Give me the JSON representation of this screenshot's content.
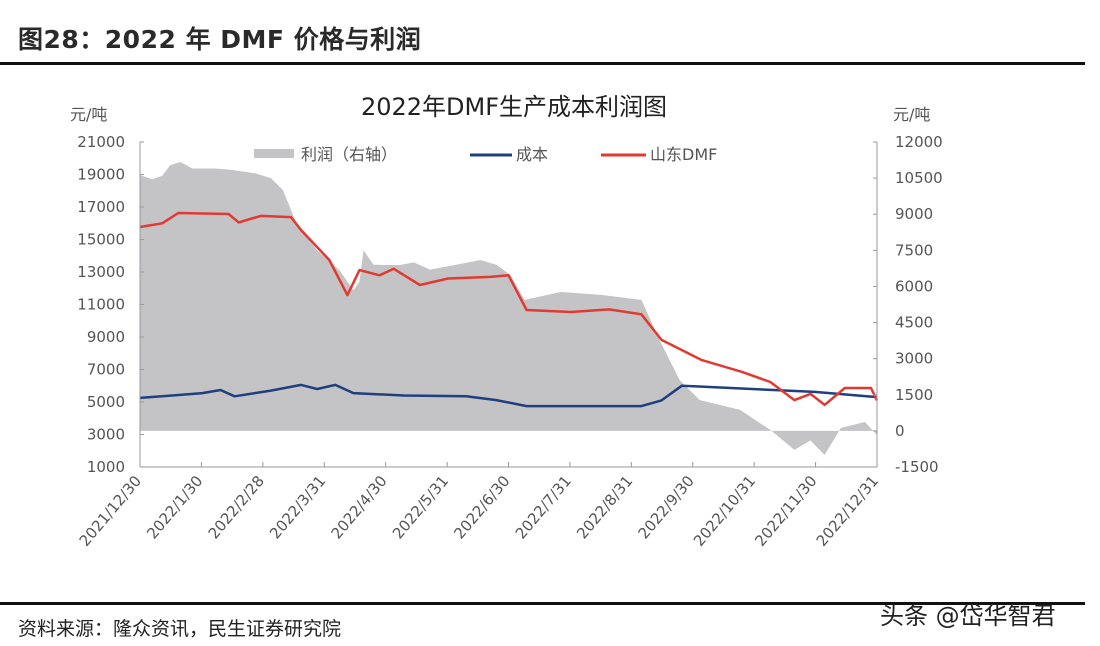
{
  "figure": {
    "title": "图28：2022 年 DMF 价格与利润",
    "source": "资料来源：隆众资讯，民生证券研究院",
    "watermark": "头条 @岱华智君"
  },
  "chart_data": {
    "type": "line+area",
    "title": "2022年DMF生产成本利润图",
    "ylabel_left": "元/吨",
    "ylabel_right": "元/吨",
    "ylim_left": [
      1000,
      21000
    ],
    "ylim_right": [
      -1500,
      12000
    ],
    "yticks_left": [
      "21000",
      "19000",
      "17000",
      "15000",
      "13000",
      "11000",
      "9000",
      "7000",
      "5000",
      "3000",
      "1000"
    ],
    "yticks_right": [
      "12000",
      "10500",
      "9000",
      "7500",
      "6000",
      "4500",
      "3000",
      "1500",
      "0",
      "-1500"
    ],
    "xlim": [
      "2021-12-30",
      "2022-12-31"
    ],
    "xticks": [
      "2021/12/30",
      "2022/1/30",
      "2022/2/28",
      "2022/3/31",
      "2022/4/30",
      "2022/5/31",
      "2022/6/30",
      "2022/7/31",
      "2022/8/31",
      "2022/9/30",
      "2022/10/31",
      "2022/11/30",
      "2022/12/31"
    ],
    "grid": false,
    "legend_position": "top",
    "colors": {
      "profit": "#c4c4c6",
      "cost": "#1f3f7f",
      "price": "#e03a32"
    },
    "series": [
      {
        "name": "利润（右轴）",
        "axis": "right",
        "kind": "area",
        "points": [
          [
            "2021-12-30",
            10630
          ],
          [
            "2022-01-05",
            10450
          ],
          [
            "2022-01-10",
            10600
          ],
          [
            "2022-01-14",
            11040
          ],
          [
            "2022-01-19",
            11170
          ],
          [
            "2022-01-25",
            10900
          ],
          [
            "2022-02-05",
            10900
          ],
          [
            "2022-02-13",
            10850
          ],
          [
            "2022-02-25",
            10700
          ],
          [
            "2022-03-05",
            10500
          ],
          [
            "2022-03-11",
            10000
          ],
          [
            "2022-03-18",
            8550
          ],
          [
            "2022-03-28",
            7500
          ],
          [
            "2022-04-08",
            6680
          ],
          [
            "2022-04-15",
            5850
          ],
          [
            "2022-04-18",
            6200
          ],
          [
            "2022-04-20",
            7500
          ],
          [
            "2022-04-25",
            6900
          ],
          [
            "2022-05-08",
            6890
          ],
          [
            "2022-05-15",
            7000
          ],
          [
            "2022-05-23",
            6700
          ],
          [
            "2022-06-05",
            6900
          ],
          [
            "2022-06-17",
            7100
          ],
          [
            "2022-06-25",
            6900
          ],
          [
            "2022-07-02",
            6470
          ],
          [
            "2022-07-09",
            5440
          ],
          [
            "2022-07-27",
            5770
          ],
          [
            "2022-08-16",
            5650
          ],
          [
            "2022-09-05",
            5440
          ],
          [
            "2022-09-14",
            3775
          ],
          [
            "2022-09-24",
            2110
          ],
          [
            "2022-10-04",
            1280
          ],
          [
            "2022-10-24",
            870
          ],
          [
            "2022-11-08",
            40
          ],
          [
            "2022-11-20",
            -790
          ],
          [
            "2022-11-28",
            -400
          ],
          [
            "2022-12-05",
            -1000
          ],
          [
            "2022-12-13",
            120
          ],
          [
            "2022-12-25",
            370
          ],
          [
            "2022-12-31",
            -170
          ]
        ]
      },
      {
        "name": "成本",
        "axis": "left",
        "kind": "line",
        "points": [
          [
            "2021-12-30",
            5250
          ],
          [
            "2022-01-15",
            5400
          ],
          [
            "2022-01-30",
            5550
          ],
          [
            "2022-02-08",
            5740
          ],
          [
            "2022-02-15",
            5350
          ],
          [
            "2022-03-05",
            5700
          ],
          [
            "2022-03-20",
            6050
          ],
          [
            "2022-03-28",
            5800
          ],
          [
            "2022-04-06",
            6050
          ],
          [
            "2022-04-15",
            5550
          ],
          [
            "2022-05-10",
            5400
          ],
          [
            "2022-06-10",
            5350
          ],
          [
            "2022-06-25",
            5120
          ],
          [
            "2022-07-10",
            4750
          ],
          [
            "2022-08-10",
            4750
          ],
          [
            "2022-09-05",
            4750
          ],
          [
            "2022-09-15",
            5100
          ],
          [
            "2022-09-25",
            6000
          ],
          [
            "2022-10-05",
            5950
          ],
          [
            "2022-10-30",
            5800
          ],
          [
            "2022-11-30",
            5620
          ],
          [
            "2022-12-31",
            5300
          ]
        ]
      },
      {
        "name": "山东DMF",
        "axis": "left",
        "kind": "line",
        "points": [
          [
            "2021-12-30",
            15770
          ],
          [
            "2022-01-10",
            16000
          ],
          [
            "2022-01-18",
            16630
          ],
          [
            "2022-02-12",
            16570
          ],
          [
            "2022-02-17",
            16050
          ],
          [
            "2022-02-28",
            16450
          ],
          [
            "2022-03-15",
            16380
          ],
          [
            "2022-03-20",
            15580
          ],
          [
            "2022-04-03",
            13740
          ],
          [
            "2022-04-12",
            11580
          ],
          [
            "2022-04-18",
            13120
          ],
          [
            "2022-04-28",
            12800
          ],
          [
            "2022-05-05",
            13200
          ],
          [
            "2022-05-18",
            12200
          ],
          [
            "2022-06-01",
            12600
          ],
          [
            "2022-06-22",
            12700
          ],
          [
            "2022-07-01",
            12800
          ],
          [
            "2022-07-10",
            10660
          ],
          [
            "2022-08-01",
            10540
          ],
          [
            "2022-08-20",
            10700
          ],
          [
            "2022-09-05",
            10400
          ],
          [
            "2022-09-15",
            8820
          ],
          [
            "2022-09-25",
            8200
          ],
          [
            "2022-10-05",
            7580
          ],
          [
            "2022-10-25",
            6850
          ],
          [
            "2022-11-08",
            6230
          ],
          [
            "2022-11-20",
            5120
          ],
          [
            "2022-11-28",
            5500
          ],
          [
            "2022-12-05",
            4820
          ],
          [
            "2022-12-15",
            5860
          ],
          [
            "2022-12-28",
            5860
          ],
          [
            "2022-12-31",
            5100
          ]
        ]
      }
    ]
  }
}
